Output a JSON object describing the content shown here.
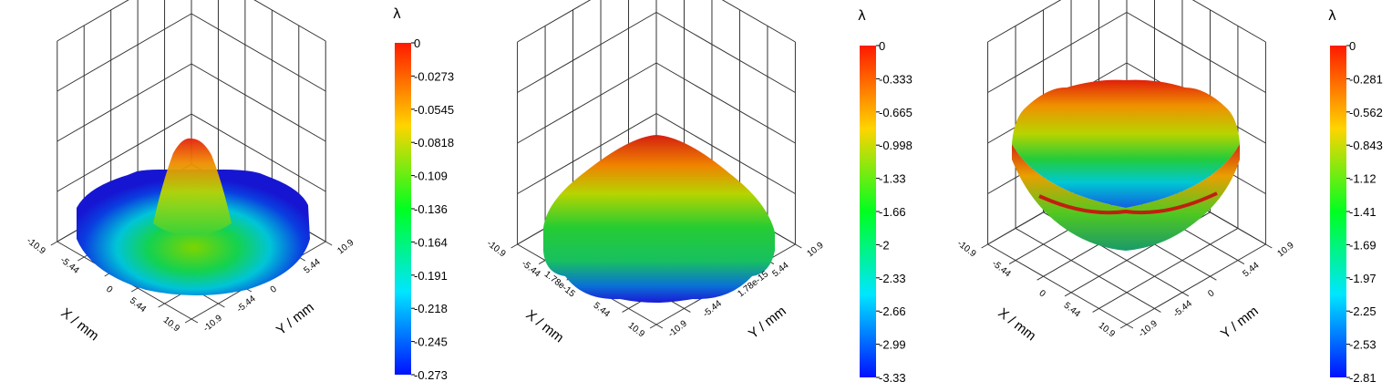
{
  "colors": {
    "colormap": [
      "#1a1adc",
      "#0a4fe6",
      "#00c8e6",
      "#00d24a",
      "#7ad200",
      "#e6e600",
      "#f28c00",
      "#e61e00"
    ],
    "grid": "#333333"
  },
  "chart_data": [
    {
      "type": "surface3d",
      "surface": "gaussian-peak",
      "x_label": "X / mm",
      "y_label": "Y / mm",
      "x_ticks": [
        "-10.9",
        "-5.44",
        "0",
        "5.44",
        "10.9"
      ],
      "y_ticks": [
        "10.9",
        "5.44",
        "0",
        "-5.44",
        "-10.9"
      ],
      "colorbar_title": "λ",
      "colorbar_range": [
        -0.273,
        0
      ],
      "colorbar_ticks": [
        "0",
        "-0.0273",
        "-0.0545",
        "-0.0818",
        "-0.109",
        "-0.136",
        "-0.164",
        "-0.191",
        "-0.218",
        "-0.245",
        "-0.273"
      ]
    },
    {
      "type": "surface3d",
      "surface": "dome",
      "x_label": "X / mm",
      "y_label": "Y / mm",
      "x_ticks": [
        "-10.9",
        "-5.44",
        "1.78e-15",
        "5.44",
        "10.9"
      ],
      "y_ticks": [
        "10.9",
        "5.44",
        "1.78e-15",
        "-5.44",
        "-10.9"
      ],
      "colorbar_title": "λ",
      "colorbar_range": [
        -3.33,
        0
      ],
      "colorbar_ticks": [
        "0",
        "-0.333",
        "-0.665",
        "-0.998",
        "-1.33",
        "-1.66",
        "-2",
        "-2.33",
        "-2.66",
        "-2.99",
        "-3.33"
      ]
    },
    {
      "type": "surface3d",
      "surface": "bowl",
      "x_label": "X / mm",
      "y_label": "Y / mm",
      "x_ticks": [
        "-10.9",
        "-5.44",
        "0",
        "5.44",
        "10.9"
      ],
      "y_ticks": [
        "10.9",
        "5.44",
        "0",
        "-5.44",
        "-10.9"
      ],
      "colorbar_title": "λ",
      "colorbar_range": [
        -2.81,
        0
      ],
      "colorbar_ticks": [
        "0",
        "-0.281",
        "-0.562",
        "-0.843",
        "-1.12",
        "-1.41",
        "-1.69",
        "-1.97",
        "-2.25",
        "-2.53",
        "-2.81"
      ]
    }
  ]
}
